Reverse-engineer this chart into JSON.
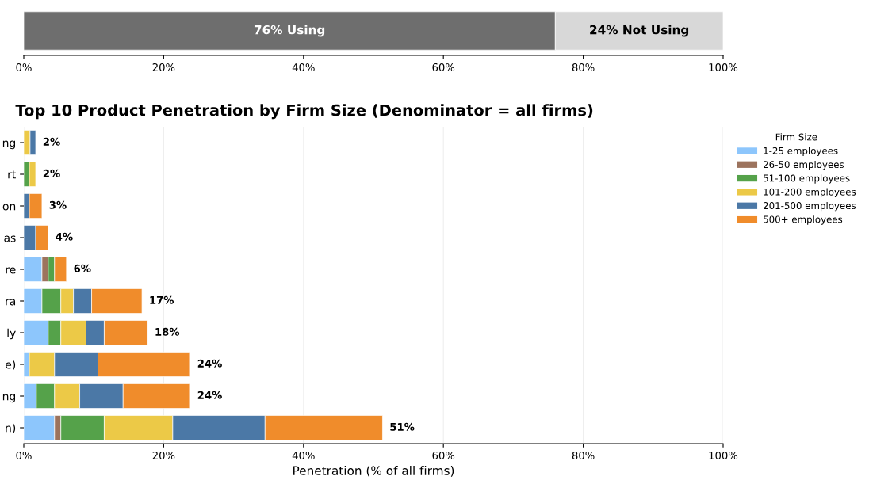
{
  "chart_data": [
    {
      "type": "bar",
      "orientation": "horizontal",
      "stacked": true,
      "categories": [
        null
      ],
      "series": [
        {
          "color": "#6e6e6e",
          "values": [
            76
          ],
          "value_labels": [
            "76% Using"
          ]
        },
        {
          "color": "#d8d8d8",
          "values": [
            24
          ],
          "value_labels": [
            "24% Not Using"
          ]
        }
      ],
      "xlim": [
        0,
        100
      ],
      "xticks": [
        {
          "value": 0,
          "label": "0%"
        },
        {
          "value": 20,
          "label": "20%"
        },
        {
          "value": 40,
          "label": "40%"
        },
        {
          "value": 60,
          "label": "60%"
        },
        {
          "value": 80,
          "label": "80%"
        },
        {
          "value": 100,
          "label": "100%"
        }
      ],
      "tick_labels": "x",
      "grid": false,
      "legend": false
    },
    {
      "type": "bar",
      "orientation": "horizontal",
      "stacked": true,
      "title": "Top 10 Product Penetration by Firm Size (Denominator = all firms)",
      "xlabel": "Penetration (% of all firms)",
      "legend_title": "Firm Size",
      "categories": [
        "ng",
        "rt",
        "on",
        "as",
        "re",
        "ra",
        "ly",
        "e)",
        "ng",
        "n)"
      ],
      "series": [
        {
          "name": "1-25 employees",
          "color": "#8dc6fc",
          "values": [
            0,
            0,
            0,
            0,
            2.6,
            2.6,
            3.5,
            0.8,
            1.8,
            4.4
          ]
        },
        {
          "name": "26-50 employees",
          "color": "#9c735d",
          "values": [
            0,
            0,
            0,
            0,
            0.9,
            0,
            0,
            0,
            0,
            0.9
          ]
        },
        {
          "name": "51-100 employees",
          "color": "#55a24a",
          "values": [
            0,
            0.8,
            0,
            0,
            0.9,
            2.7,
            1.8,
            0,
            2.6,
            6.2
          ]
        },
        {
          "name": "101-200 employees",
          "color": "#ecc947",
          "values": [
            0.9,
            0.9,
            0,
            0,
            0,
            1.8,
            3.6,
            3.6,
            3.6,
            9.8
          ]
        },
        {
          "name": "201-500 employees",
          "color": "#4b78a6",
          "values": [
            0.8,
            0,
            0.8,
            1.7,
            0,
            2.6,
            2.6,
            6.2,
            6.2,
            13.2
          ]
        },
        {
          "name": "500+ employees",
          "color": "#f08c2b",
          "values": [
            0,
            0,
            1.8,
            1.8,
            1.7,
            7.2,
            6.2,
            13.2,
            9.6,
            16.8
          ]
        }
      ],
      "totals": [
        "2%",
        "2%",
        "3%",
        "4%",
        "6%",
        "17%",
        "18%",
        "24%",
        "24%",
        "51%"
      ],
      "xlim": [
        0,
        100
      ],
      "xticks": [
        {
          "value": 0,
          "label": "0%"
        },
        {
          "value": 20,
          "label": "20%"
        },
        {
          "value": 40,
          "label": "40%"
        },
        {
          "value": 60,
          "label": "60%"
        },
        {
          "value": 80,
          "label": "80%"
        },
        {
          "value": 100,
          "label": "100%"
        }
      ],
      "grid": "x",
      "legend": "top right"
    }
  ]
}
